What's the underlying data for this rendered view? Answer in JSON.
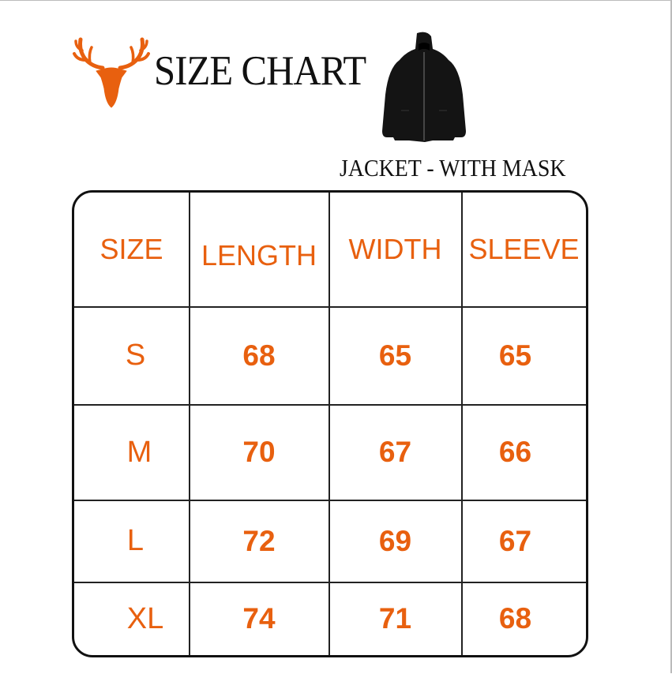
{
  "header": {
    "title": "SIZE CHART",
    "subtitle": "JACKET - WITH MASK",
    "logo_icon": "deer-head-icon",
    "product_image": "black-hooded-jacket",
    "accent_color": "#e8600f"
  },
  "table": {
    "columns": [
      "SIZE",
      "LENGTH",
      "WIDTH",
      "SLEEVE"
    ],
    "rows": [
      {
        "size": "S",
        "length": "68",
        "width": "65",
        "sleeve": "65"
      },
      {
        "size": "M",
        "length": "70",
        "width": "67",
        "sleeve": "66"
      },
      {
        "size": "L",
        "length": "72",
        "width": "69",
        "sleeve": "67"
      },
      {
        "size": "XL",
        "length": "74",
        "width": "71",
        "sleeve": "68"
      }
    ]
  }
}
